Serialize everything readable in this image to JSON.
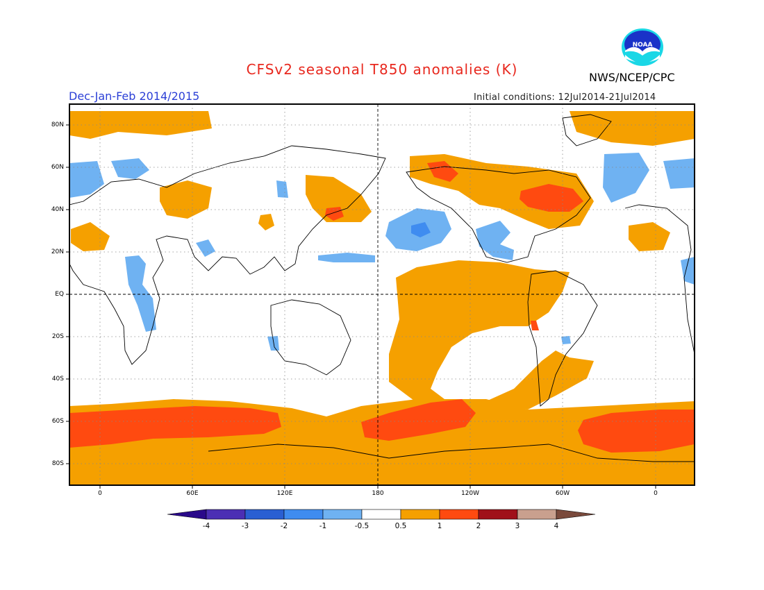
{
  "header": {
    "title": "CFSv2 seasonal T850 anomalies (K)",
    "period": "Dec-Jan-Feb 2014/2015",
    "agency": "NWS/NCEP/CPC",
    "initial_conditions": "Initial conditions: 12Jul2014-21Jul2014",
    "logo_text": "NOAA"
  },
  "map": {
    "lat_labels": [
      "80N",
      "60N",
      "40N",
      "20N",
      "EQ",
      "20S",
      "40S",
      "60S",
      "80S"
    ],
    "lon_labels": [
      "0",
      "60E",
      "120E",
      "180",
      "120W",
      "60W",
      "0"
    ]
  },
  "colorbar": {
    "labels": [
      "-4",
      "-3",
      "-2",
      "-1",
      "-0.5",
      "0.5",
      "1",
      "2",
      "3",
      "4"
    ],
    "colors": [
      "#4b2fb4",
      "#2a5fd2",
      "#3f8cf0",
      "#6fb2f2",
      "#ffffff",
      "#f5a000",
      "#ff4a10",
      "#a0101a",
      "#c9a08e"
    ],
    "low_extension_color": "#2a0a8a",
    "high_extension_color": "#7a4a3c"
  }
}
